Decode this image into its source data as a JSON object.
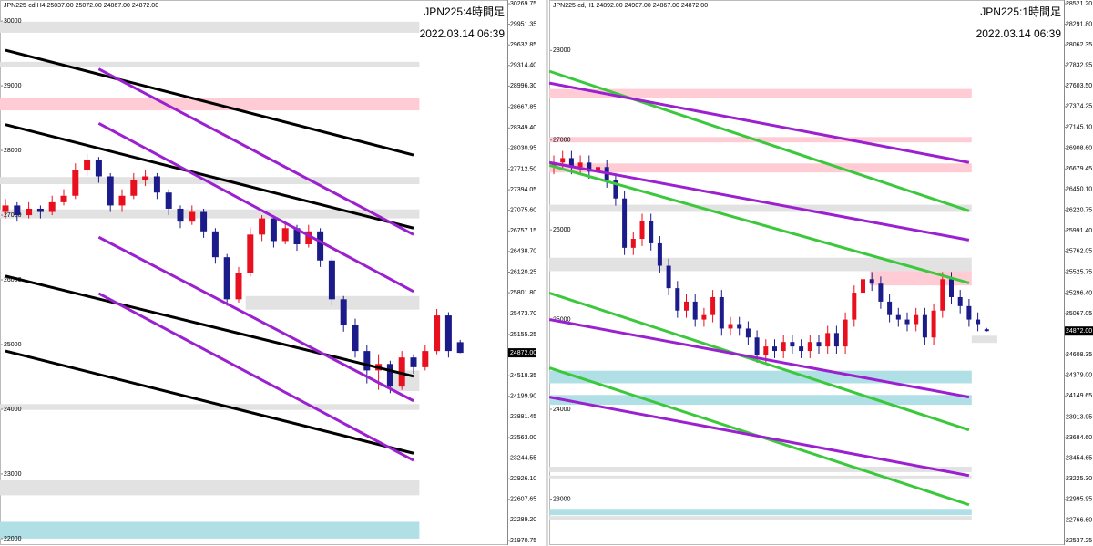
{
  "chart_data": [
    {
      "type": "candlestick",
      "header": "JPN225-cd,H4  25037.00 25072.00 24867.00 24872.00",
      "title": "JPN225:4時間足",
      "subtitle": "2022.03.14 06:39",
      "up_color": "#e8101e",
      "down_color": "#1b1b8a",
      "open": [
        27050,
        27150,
        27000,
        27100,
        27050,
        27200,
        27300,
        27700,
        27850,
        27600,
        27150,
        27300,
        27550,
        27600,
        27350,
        27100,
        26900,
        27050,
        26750,
        26350,
        25700,
        26100,
        26700,
        26950,
        26600,
        26800,
        26550,
        26750,
        26300,
        25700,
        25300,
        24900,
        24600,
        24700,
        24350,
        24800,
        24650,
        24900,
        25450,
        25037
      ],
      "high": [
        27250,
        27200,
        27200,
        27150,
        27300,
        27400,
        27800,
        27950,
        27900,
        27650,
        27400,
        27650,
        27700,
        27650,
        27400,
        27150,
        27150,
        27100,
        26800,
        26400,
        26200,
        26800,
        27000,
        27000,
        26900,
        26850,
        26850,
        26800,
        26350,
        25750,
        25400,
        25000,
        24850,
        24750,
        24900,
        24850,
        25000,
        25550,
        25500,
        25072
      ],
      "low": [
        26950,
        26900,
        26950,
        26950,
        27000,
        27150,
        27250,
        27600,
        27500,
        27050,
        27050,
        27250,
        27450,
        27250,
        27000,
        26800,
        26850,
        26650,
        26250,
        25600,
        25650,
        26050,
        26600,
        26500,
        26550,
        26450,
        26500,
        26200,
        25600,
        25200,
        24800,
        24400,
        24300,
        24250,
        24300,
        24550,
        24600,
        24850,
        24800,
        24867
      ],
      "close": [
        27150,
        27000,
        27100,
        27050,
        27200,
        27300,
        27700,
        27850,
        27600,
        27150,
        27300,
        27550,
        27600,
        27350,
        27100,
        26900,
        27050,
        26750,
        26350,
        25700,
        26100,
        26700,
        26950,
        26600,
        26800,
        26550,
        26750,
        26300,
        25700,
        25300,
        24900,
        24600,
        24700,
        24350,
        24800,
        24650,
        24900,
        25450,
        24900,
        24872
      ],
      "lines": [
        {
          "color": "#000000",
          "x": [
            0,
            35
          ],
          "y": [
            29550,
            27930
          ]
        },
        {
          "color": "#000000",
          "x": [
            0,
            35
          ],
          "y": [
            28400,
            26800
          ]
        },
        {
          "color": "#000000",
          "x": [
            0,
            35
          ],
          "y": [
            26060,
            24510
          ]
        },
        {
          "color": "#000000",
          "x": [
            0,
            35
          ],
          "y": [
            24900,
            23320
          ]
        },
        {
          "color": "#9b20d0",
          "x": [
            8,
            35
          ],
          "y": [
            29260,
            26700
          ]
        },
        {
          "color": "#9b20d0",
          "x": [
            8,
            35
          ],
          "y": [
            28420,
            25820
          ]
        },
        {
          "color": "#9b20d0",
          "x": [
            8,
            35
          ],
          "y": [
            26660,
            24130
          ]
        },
        {
          "color": "#9b20d0",
          "x": [
            8,
            35
          ],
          "y": [
            25790,
            23210
          ]
        }
      ],
      "zones": [
        {
          "color": "#e2e2e2",
          "x": [
            -0.5,
            35.5
          ],
          "y": [
            29820,
            29990
          ]
        },
        {
          "color": "#e2e2e2",
          "x": [
            -0.5,
            35.5
          ],
          "y": [
            29290,
            29370
          ]
        },
        {
          "color": "#ffccd5",
          "x": [
            -0.5,
            35.5
          ],
          "y": [
            28620,
            28810
          ]
        },
        {
          "color": "#e2e2e2",
          "x": [
            -0.5,
            35.5
          ],
          "y": [
            27480,
            27590
          ]
        },
        {
          "color": "#e2e2e2",
          "x": [
            -0.5,
            35.5
          ],
          "y": [
            26950,
            27090
          ]
        },
        {
          "color": "#e2e2e2",
          "x": [
            20.6,
            35.5
          ],
          "y": [
            25540,
            25750
          ]
        },
        {
          "color": "#e2e2e2",
          "x": [
            33,
            35.5
          ],
          "y": [
            24280,
            24600
          ]
        },
        {
          "color": "#e2e2e2",
          "x": [
            -0.5,
            35.5
          ],
          "y": [
            23990,
            24080
          ]
        },
        {
          "color": "#e2e2e2",
          "x": [
            -0.5,
            35.5
          ],
          "y": [
            22670,
            22900
          ]
        },
        {
          "color": "#b0dfe5",
          "x": [
            -0.5,
            35.5
          ],
          "y": [
            22000,
            22260
          ]
        }
      ],
      "ylim": [
        21970.75,
        30269.75
      ],
      "yticks": [
        30000,
        29000,
        28000,
        27000,
        26000,
        25000,
        24000,
        23000,
        22000
      ],
      "y2lim": [
        21970.75,
        30269.75
      ],
      "y2ticks": [
        30269.75,
        29951.35,
        29632.85,
        {
          "value": 29314.4,
          "label": "29314.40"
        },
        {
          "value": 28996.3,
          "label": "28996.30"
        },
        28667.85,
        {
          "value": 28349.4,
          "label": "28349.40"
        },
        28030.95,
        {
          "value": 27712.5,
          "label": "27712.50"
        },
        27394.05,
        {
          "value": 27075.6,
          "label": "27075.60"
        },
        26757.15,
        {
          "value": 26438.7,
          "label": "26438.70"
        },
        26120.25,
        {
          "value": 25801.8,
          "label": "25801.80"
        },
        {
          "value": 25473.7,
          "label": "25473.70"
        },
        25155.25,
        24518.35,
        {
          "value": 24199.9,
          "label": "24199.90"
        },
        23881.45,
        {
          "value": 23563,
          "label": "23563.00"
        },
        23244.55,
        {
          "value": 22926.1,
          "label": "22926.10"
        },
        22607.65,
        {
          "value": 22289.2,
          "label": "22289.20"
        },
        21970.75
      ],
      "current_price": {
        "value": 24872,
        "label": "24872.00"
      }
    },
    {
      "type": "candlestick",
      "header": "JPN225-cd,H1  24892.00 24907.00 24867.00 24872.00",
      "title": "JPN225:1時間足",
      "subtitle": "2022.03.14 06:39",
      "up_color": "#e8101e",
      "down_color": "#1b1b8a",
      "open": [
        26700,
        26750,
        26800,
        26700,
        26750,
        26650,
        26700,
        26550,
        26350,
        25800,
        25900,
        26100,
        25850,
        25600,
        25350,
        25100,
        25200,
        25000,
        25050,
        25250,
        24900,
        24950,
        24900,
        24800,
        24600,
        24700,
        24650,
        24750,
        24700,
        24650,
        24750,
        24700,
        24850,
        24700,
        25000,
        25300,
        25450,
        25400,
        25200,
        25050,
        25000,
        24950,
        25050,
        24800,
        25100,
        25450,
        25250,
        25150,
        25000,
        24892
      ],
      "high": [
        26830,
        26880,
        26880,
        26830,
        26830,
        26780,
        26780,
        26630,
        26430,
        25980,
        26180,
        26180,
        25930,
        25680,
        25430,
        25280,
        25280,
        25130,
        25330,
        25330,
        25030,
        25030,
        24980,
        24880,
        24780,
        24780,
        24830,
        24830,
        24780,
        24830,
        24830,
        24930,
        24930,
        25080,
        25380,
        25530,
        25530,
        25480,
        25280,
        25130,
        25080,
        25130,
        25130,
        25180,
        25530,
        25530,
        25330,
        25230,
        25080,
        24907
      ],
      "low": [
        26620,
        26670,
        26620,
        26620,
        26570,
        26570,
        26470,
        26270,
        25720,
        25720,
        25820,
        25770,
        25520,
        25270,
        25020,
        25020,
        24920,
        24920,
        24970,
        24820,
        24820,
        24820,
        24720,
        24520,
        24520,
        24570,
        24570,
        24620,
        24570,
        24570,
        24620,
        24620,
        24620,
        24620,
        24920,
        25220,
        25320,
        25120,
        24970,
        24920,
        24870,
        24870,
        24720,
        24720,
        25020,
        25170,
        25070,
        24920,
        24870,
        24867
      ],
      "close": [
        26750,
        26800,
        26700,
        26750,
        26650,
        26700,
        26550,
        26350,
        25800,
        25900,
        26100,
        25850,
        25600,
        25350,
        25100,
        25200,
        25000,
        25050,
        25250,
        24900,
        24950,
        24900,
        24800,
        24600,
        24700,
        24650,
        24750,
        24700,
        24650,
        24750,
        24700,
        24850,
        24700,
        25000,
        25300,
        25450,
        25400,
        25200,
        25050,
        25000,
        24950,
        25050,
        24800,
        25100,
        25450,
        25250,
        25150,
        25000,
        24950,
        24872
      ],
      "lines": [
        {
          "color": "#3cc83c",
          "x": [
            -0.5,
            47
          ],
          "y": [
            27768,
            26212
          ]
        },
        {
          "color": "#3cc83c",
          "x": [
            -0.5,
            47
          ],
          "y": [
            26720,
            25408
          ]
        },
        {
          "color": "#3cc83c",
          "x": [
            -0.5,
            47
          ],
          "y": [
            25296,
            23770
          ]
        },
        {
          "color": "#3cc83c",
          "x": [
            -0.5,
            47
          ],
          "y": [
            24462,
            22936
          ]
        },
        {
          "color": "#9b20d0",
          "x": [
            -0.5,
            47
          ],
          "y": [
            27636,
            26751
          ]
        },
        {
          "color": "#9b20d0",
          "x": [
            -0.5,
            47
          ],
          "y": [
            26751,
            25886
          ]
        },
        {
          "color": "#9b20d0",
          "x": [
            -0.5,
            47
          ],
          "y": [
            25001,
            24136
          ]
        },
        {
          "color": "#9b20d0",
          "x": [
            -0.5,
            47
          ],
          "y": [
            24136,
            23261
          ]
        }
      ],
      "zones": [
        {
          "color": "#ffccd5",
          "x": [
            -0.5,
            47.3
          ],
          "y": [
            27470,
            27570
          ]
        },
        {
          "color": "#ffccd5",
          "x": [
            -0.5,
            47.3
          ],
          "y": [
            26975,
            27035
          ]
        },
        {
          "color": "#ffccd5",
          "x": [
            -0.5,
            47.3
          ],
          "y": [
            26640,
            26740
          ]
        },
        {
          "color": "#e2e2e2",
          "x": [
            -0.5,
            47.3
          ],
          "y": [
            26200,
            26280
          ]
        },
        {
          "color": "#e2e2e2",
          "x": [
            -0.5,
            47.3
          ],
          "y": [
            25540,
            25690
          ]
        },
        {
          "color": "#ffccd5",
          "x": [
            35.8,
            47.3
          ],
          "y": [
            25380,
            25540
          ]
        },
        {
          "color": "#e2e2e2",
          "x": [
            47.3,
            50.2
          ],
          "y": [
            24740,
            24820
          ]
        },
        {
          "color": "#b0dfe5",
          "x": [
            -0.5,
            47.3
          ],
          "y": [
            24290,
            24430
          ]
        },
        {
          "color": "#b0dfe5",
          "x": [
            -0.5,
            47.3
          ],
          "y": [
            24050,
            24160
          ]
        },
        {
          "color": "#e2e2e2",
          "x": [
            -0.5,
            47.3
          ],
          "y": [
            23300,
            23360
          ]
        },
        {
          "color": "#e2e2e2",
          "x": [
            -0.5,
            47.3
          ],
          "y": [
            23230,
            23260
          ]
        },
        {
          "color": "#b0dfe5",
          "x": [
            -0.5,
            47.3
          ],
          "y": [
            22820,
            22890
          ]
        },
        {
          "color": "#e2e2e2",
          "x": [
            -0.5,
            47.3
          ],
          "y": [
            22770,
            22810
          ]
        }
      ],
      "ylim": [
        22537.25,
        28521.2
      ],
      "yticks": [
        28000,
        27000,
        26000,
        25000,
        24000,
        23000
      ],
      "y2lim": [
        22537.25,
        28521.2
      ],
      "y2ticks": [
        {
          "value": 28521.2,
          "label": "28521.20"
        },
        {
          "value": 28291.8,
          "label": "28291.80"
        },
        28062.35,
        27832.95,
        {
          "value": 27603.5,
          "label": "27603.50"
        },
        27374.25,
        {
          "value": 27145.1,
          "label": "27145.10"
        },
        {
          "value": 26908.6,
          "label": "26908.60"
        },
        26679.45,
        {
          "value": 26450.1,
          "label": "26450.10"
        },
        26220.75,
        {
          "value": 25991.4,
          "label": "25991.40"
        },
        25762.05,
        25525.75,
        {
          "value": 25296.4,
          "label": "25296.40"
        },
        25067.05,
        24608.35,
        {
          "value": 24379,
          "label": "24379.00"
        },
        24149.65,
        23913.95,
        {
          "value": 23684.6,
          "label": "23684.60"
        },
        23454.65,
        {
          "value": 23225.3,
          "label": "23225.30"
        },
        22995.95,
        {
          "value": 22766.6,
          "label": "22766.60"
        },
        22537.25
      ],
      "current_price": {
        "value": 24872,
        "label": "24872.00"
      }
    }
  ]
}
